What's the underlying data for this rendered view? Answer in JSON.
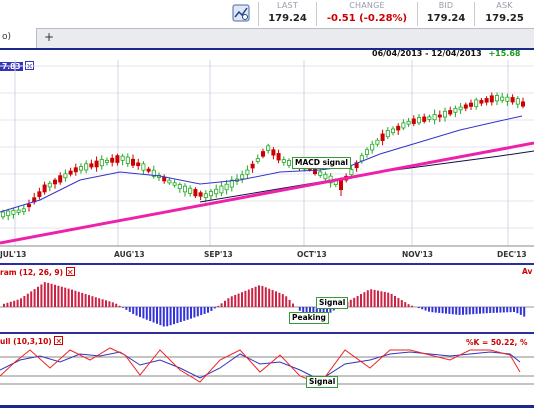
{
  "header": {
    "stats": [
      {
        "label": "LAST",
        "value": "179.24",
        "color": "#222222"
      },
      {
        "label": "CHANGE",
        "value": "-0.51 (-0.28%)",
        "color": "#cc0000"
      },
      {
        "label": "BID",
        "value": "179.24",
        "color": "#222222"
      },
      {
        "label": "ASK",
        "value": "179.25",
        "color": "#222222"
      }
    ]
  },
  "tabs": {
    "active_label": "o)",
    "add_label": "+"
  },
  "price_pane": {
    "legend_value": "7.83",
    "date_range": "06/04/2013 - 12/04/2013",
    "change": "+15.68",
    "change_color": "#1a9a1a",
    "x_ticks": [
      "JUL'13",
      "AUG'13",
      "SEP'13",
      "OCT'13",
      "NOV'13",
      "DEC'13"
    ],
    "annotation": "MACD signal"
  },
  "macd_pane": {
    "legend": "ram (12, 26, 9)",
    "right_label": "Av",
    "annotations": [
      "Signal",
      "Peaking"
    ]
  },
  "stoch_pane": {
    "legend": "ull (10,3,10)",
    "readout": "%K = 50.22, %",
    "annotation": "Signal"
  },
  "colors": {
    "frame": "#1a2a8a",
    "up_candle": "#22aa22",
    "down_candle": "#cc0000",
    "trendline": "#ee22aa",
    "ma_fast": "#3333cc",
    "ma_slow": "#111144",
    "hist_pos": "#cc2244",
    "hist_neg": "#3333dd",
    "stoch_k": "#ee2222",
    "stoch_d": "#3333bb"
  },
  "icons": {
    "chart_icon": "chart-icon"
  }
}
